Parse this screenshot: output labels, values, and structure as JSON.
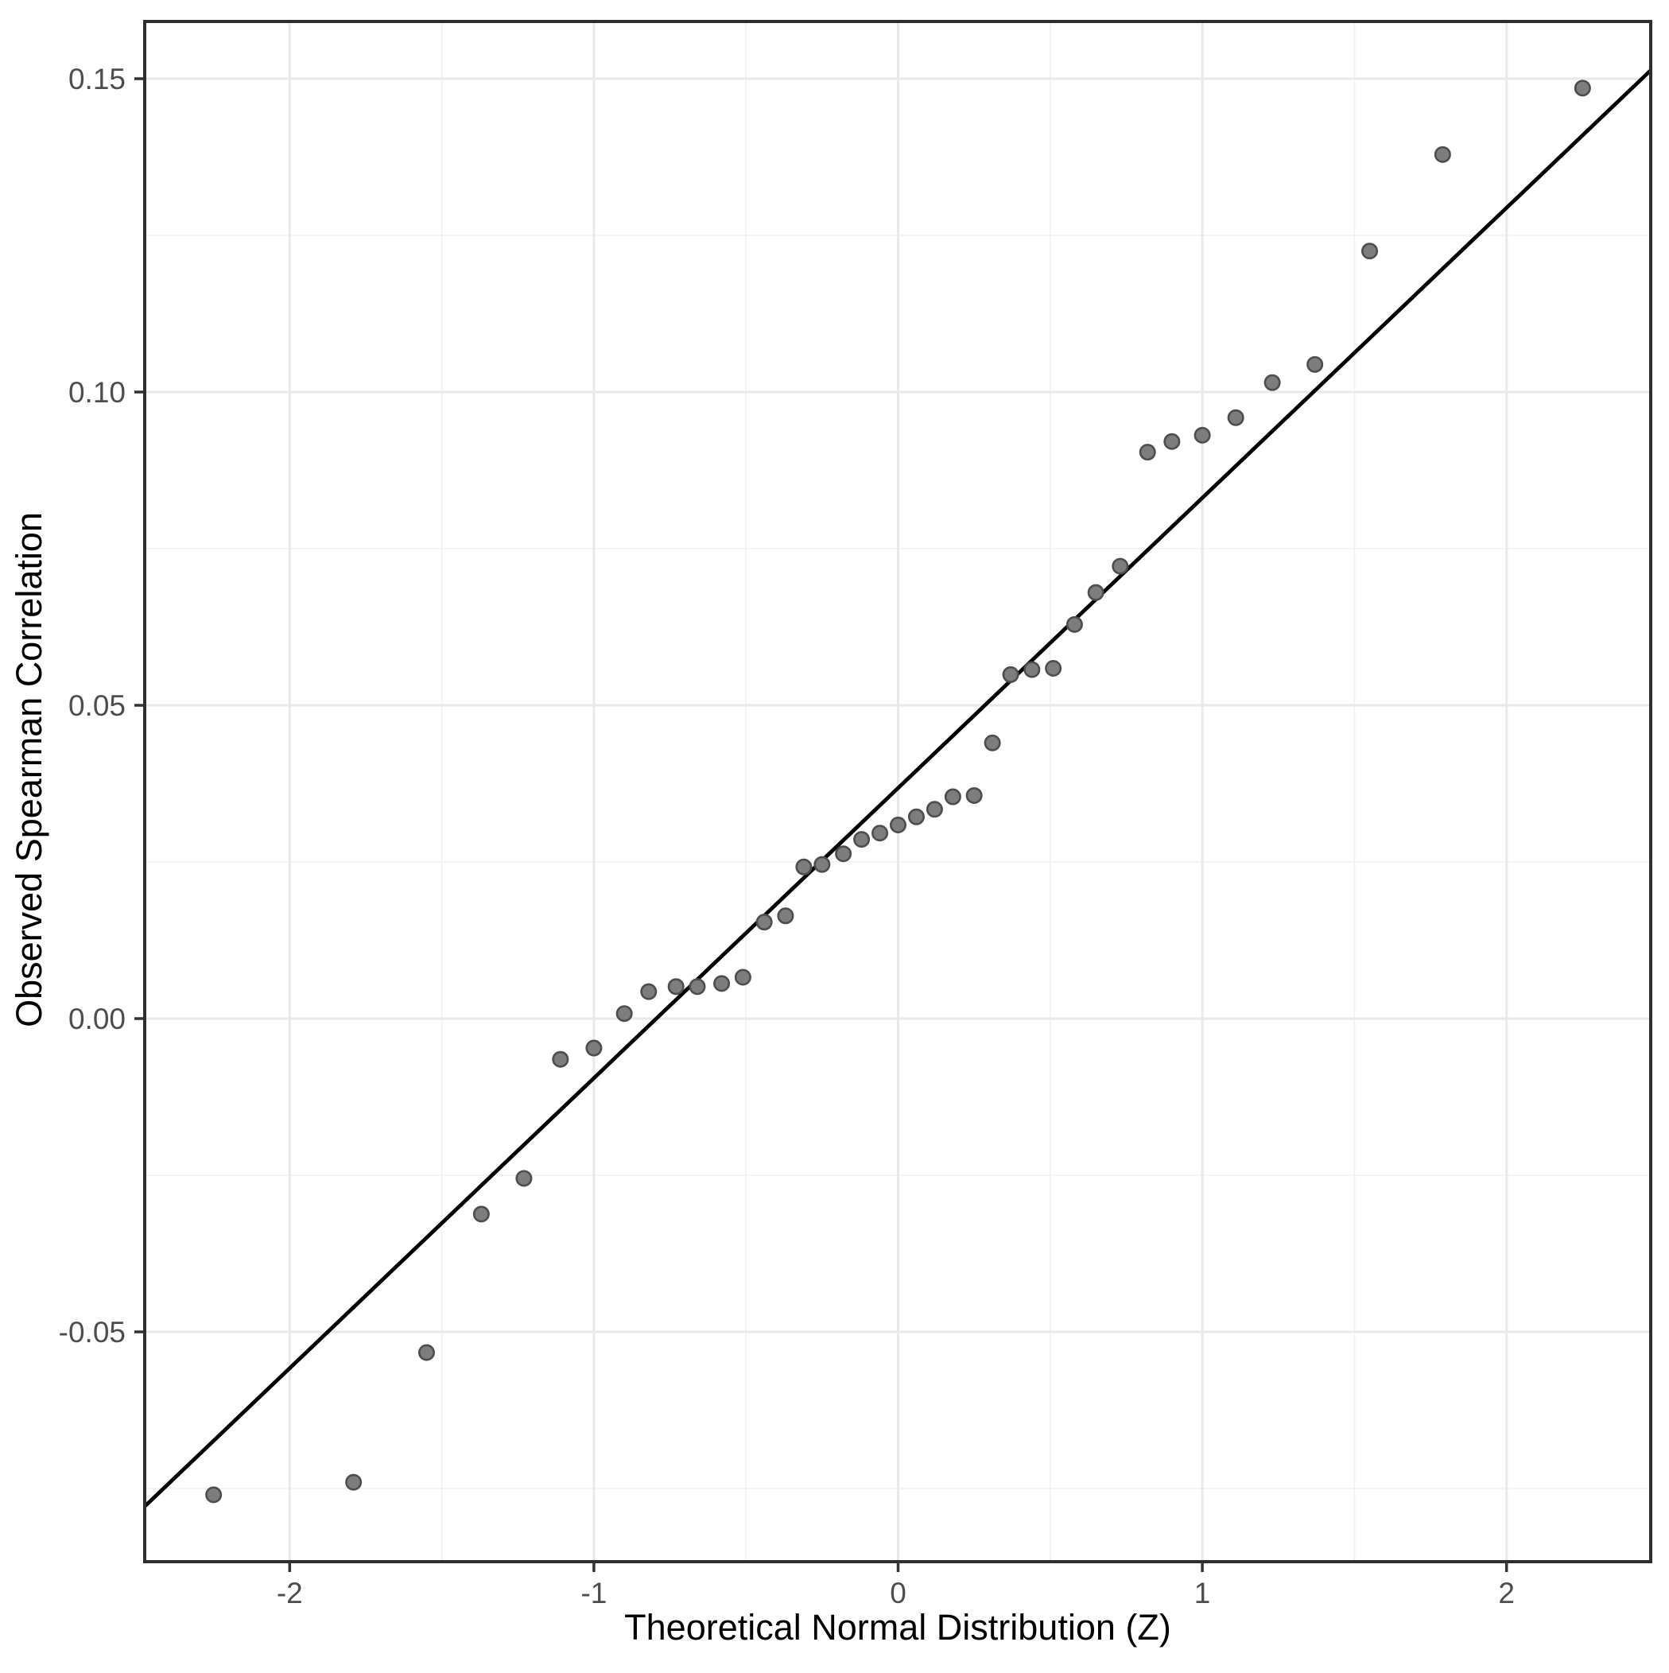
{
  "figure": {
    "background": "#ffffff",
    "panel_border_color": "#2e2e2e",
    "grid_major_color": "#e9e9e9",
    "grid_minor_color": "#f2f2f2",
    "tick_mark_color": "#333333",
    "tick_label_color": "#4d4d4d",
    "point_fill": "#7d7d7d",
    "point_stroke": "#4d4d4d",
    "reference_line_color": "#000000"
  },
  "chart_data": {
    "type": "scatter",
    "title": "",
    "xlabel": "Theoretical Normal Distribution (Z)",
    "ylabel": "Observed Spearman Correlation",
    "xlim": [
      -2.48,
      2.47
    ],
    "ylim": [
      -0.0866,
      0.1591
    ],
    "grid": "on",
    "legend": "none",
    "x_ticks": [
      {
        "v": -2,
        "label": "-2"
      },
      {
        "v": -1,
        "label": "-1"
      },
      {
        "v": 0,
        "label": "0"
      },
      {
        "v": 1,
        "label": "1"
      },
      {
        "v": 2,
        "label": "2"
      }
    ],
    "y_ticks": [
      {
        "v": -0.05,
        "label": "-0.05"
      },
      {
        "v": 0.0,
        "label": "0.00"
      },
      {
        "v": 0.05,
        "label": "0.05"
      },
      {
        "v": 0.1,
        "label": "0.10"
      },
      {
        "v": 0.15,
        "label": "0.15"
      }
    ],
    "x_minor": [
      -1.5,
      -0.5,
      0.5,
      1.5
    ],
    "y_minor": [
      -0.075,
      -0.025,
      0.025,
      0.075,
      0.125
    ],
    "reference_line": {
      "intercept": 0.0368,
      "slope": 0.0463
    },
    "series": [
      {
        "name": "sample-quantiles",
        "points": [
          [
            -2.25,
            -0.076
          ],
          [
            -1.79,
            -0.074
          ],
          [
            -1.55,
            -0.0533
          ],
          [
            -1.37,
            -0.0312
          ],
          [
            -1.23,
            -0.0255
          ],
          [
            -1.11,
            -0.0065
          ],
          [
            -1.0,
            -0.0047
          ],
          [
            -0.9,
            0.0008
          ],
          [
            -0.82,
            0.0043
          ],
          [
            -0.73,
            0.0051
          ],
          [
            -0.66,
            0.0051
          ],
          [
            -0.58,
            0.0056
          ],
          [
            -0.51,
            0.0066
          ],
          [
            -0.44,
            0.0154
          ],
          [
            -0.37,
            0.0164
          ],
          [
            -0.31,
            0.0242
          ],
          [
            -0.25,
            0.0246
          ],
          [
            -0.18,
            0.0263
          ],
          [
            -0.12,
            0.0286
          ],
          [
            -0.06,
            0.0296
          ],
          [
            0.0,
            0.0309
          ],
          [
            0.06,
            0.0322
          ],
          [
            0.12,
            0.0334
          ],
          [
            0.18,
            0.0354
          ],
          [
            0.25,
            0.0356
          ],
          [
            0.31,
            0.044
          ],
          [
            0.37,
            0.0549
          ],
          [
            0.44,
            0.0557
          ],
          [
            0.51,
            0.0559
          ],
          [
            0.58,
            0.0629
          ],
          [
            0.65,
            0.068
          ],
          [
            0.73,
            0.0722
          ],
          [
            0.82,
            0.0904
          ],
          [
            0.9,
            0.0921
          ],
          [
            1.0,
            0.0931
          ],
          [
            1.11,
            0.0959
          ],
          [
            1.23,
            0.1015
          ],
          [
            1.37,
            0.1044
          ],
          [
            1.55,
            0.1225
          ],
          [
            1.79,
            0.1379
          ],
          [
            2.25,
            0.1485
          ]
        ]
      }
    ]
  }
}
